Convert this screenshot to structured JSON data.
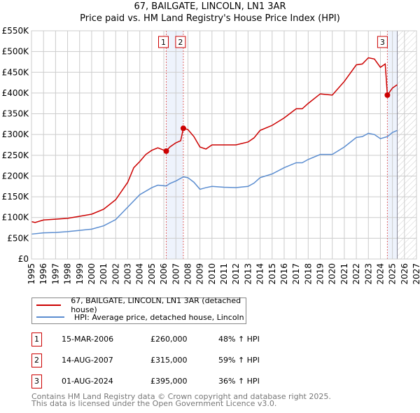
{
  "title": "67, BAILGATE, LINCOLN, LN1 3AR",
  "subtitle": "Price paid vs. HM Land Registry's House Price Index (HPI)",
  "chart_data": {
    "type": "line",
    "title": "67, BAILGATE, LINCOLN, LN1 3AR",
    "subtitle": "Price paid vs. HM Land Registry's House Price Index (HPI)",
    "xlim": [
      1995,
      2027
    ],
    "ylim": [
      0,
      550000
    ],
    "grid": true,
    "xticks": [
      "1995",
      "1996",
      "1997",
      "1998",
      "1999",
      "2000",
      "2001",
      "2002",
      "2003",
      "2004",
      "2005",
      "2006",
      "2007",
      "2008",
      "2009",
      "2010",
      "2011",
      "2012",
      "2013",
      "2014",
      "2015",
      "2016",
      "2017",
      "2018",
      "2019",
      "2020",
      "2021",
      "2022",
      "2023",
      "2024",
      "2025",
      "2026",
      "2027"
    ],
    "yticks": [
      "£0",
      "£50K",
      "£100K",
      "£150K",
      "£200K",
      "£250K",
      "£300K",
      "£350K",
      "£400K",
      "£450K",
      "£500K",
      "£550K"
    ],
    "series": [
      {
        "name": "67, BAILGATE, LINCOLN, LN1 3AR (detached house)",
        "color": "#cc0000",
        "x": [
          1995,
          1995.3,
          1996,
          1997,
          1998,
          1999,
          2000,
          2001,
          2002,
          2003,
          2003.5,
          2004,
          2004.5,
          2005,
          2005.5,
          2006.2,
          2006.5,
          2007,
          2007.4,
          2007.62,
          2008,
          2008.5,
          2009,
          2009.5,
          2010,
          2011,
          2012,
          2013,
          2013.5,
          2014,
          2015,
          2016,
          2017,
          2017.5,
          2018,
          2019,
          2020,
          2021,
          2022,
          2022.5,
          2023,
          2023.5,
          2024,
          2024.4,
          2024.58,
          2025,
          2025.4
        ],
        "y": [
          90000,
          88000,
          94000,
          96000,
          98000,
          103000,
          108000,
          120000,
          143000,
          185000,
          220000,
          235000,
          252000,
          262000,
          268000,
          260000,
          270000,
          280000,
          285000,
          315000,
          312000,
          295000,
          270000,
          265000,
          275000,
          275000,
          275000,
          282000,
          292000,
          310000,
          322000,
          340000,
          362000,
          362000,
          375000,
          398000,
          395000,
          428000,
          468000,
          470000,
          485000,
          482000,
          462000,
          470000,
          395000,
          412000,
          420000
        ]
      },
      {
        "name": "HPI: Average price, detached house, Lincoln",
        "color": "#5b8dd0",
        "x": [
          1995,
          1996,
          1997,
          1998,
          1999,
          2000,
          2001,
          2002,
          2003,
          2004,
          2005,
          2005.5,
          2006.2,
          2006.5,
          2007,
          2007.62,
          2008,
          2008.5,
          2009,
          2009.5,
          2010,
          2011,
          2012,
          2013,
          2013.5,
          2014,
          2015,
          2016,
          2017,
          2017.5,
          2018,
          2019,
          2020,
          2021,
          2022,
          2022.5,
          2023,
          2023.5,
          2024,
          2024.58,
          2025,
          2025.4
        ],
        "y": [
          60000,
          63000,
          64000,
          66000,
          69000,
          72000,
          80000,
          95000,
          125000,
          155000,
          172000,
          178000,
          176000,
          182000,
          188000,
          198000,
          196000,
          185000,
          168000,
          172000,
          175000,
          173000,
          172000,
          175000,
          183000,
          196000,
          205000,
          220000,
          232000,
          232000,
          240000,
          252000,
          252000,
          270000,
          293000,
          295000,
          303000,
          300000,
          290000,
          295000,
          305000,
          310000
        ]
      }
    ],
    "transactions": [
      {
        "label": "1",
        "date": "15-MAR-2006",
        "x": 2006.2,
        "price": "£260,000",
        "value": 260000,
        "hpi": "48% ↑ HPI"
      },
      {
        "label": "2",
        "date": "14-AUG-2007",
        "x": 2007.62,
        "price": "£315,000",
        "value": 315000,
        "hpi": "59% ↑ HPI"
      },
      {
        "label": "3",
        "date": "01-AUG-2024",
        "x": 2024.58,
        "price": "£395,000",
        "value": 395000,
        "hpi": "36% ↑ HPI"
      }
    ],
    "data_end": 2025.4,
    "legend_position": "below"
  },
  "footer": {
    "line1": "Contains HM Land Registry data © Crown copyright and database right 2025.",
    "line2": "This data is licensed under the Open Government Licence v3.0."
  }
}
